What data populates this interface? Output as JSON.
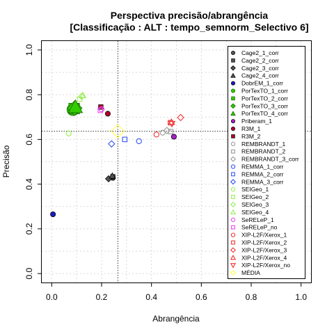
{
  "chart_data": {
    "type": "scatter",
    "title": "Perspectiva precisão/abrangência",
    "subtitle": "[Classificação : ALT : tempo_semnorm_Selectivo 6]",
    "xlabel": "Abrangência",
    "ylabel": "Precisão",
    "xlim": [
      -0.04,
      1.04
    ],
    "ylim": [
      -0.04,
      1.04
    ],
    "xticks": [
      "0.0",
      "0.2",
      "0.4",
      "0.6",
      "0.8",
      "1.0"
    ],
    "yticks": [
      "0.0",
      "0.2",
      "0.4",
      "0.6",
      "0.8",
      "1.0"
    ],
    "grid": true,
    "legend_position": "right",
    "reference_lines": {
      "x": 0.265,
      "y": 0.637
    },
    "series": [
      {
        "name": "Cage2_1_corr",
        "color": "#555555",
        "shape": "circle",
        "filled": true,
        "points": [
          [
            0.245,
            0.428
          ]
        ]
      },
      {
        "name": "Cage2_2_corr",
        "color": "#555555",
        "shape": "square",
        "filled": true,
        "points": [
          [
            0.245,
            0.433
          ]
        ]
      },
      {
        "name": "Cage2_3_corr",
        "color": "#555555",
        "shape": "diamond",
        "filled": true,
        "points": [
          [
            0.228,
            0.424
          ]
        ]
      },
      {
        "name": "Cage2_4_corr",
        "color": "#555555",
        "shape": "triangle",
        "filled": true,
        "points": [
          [
            0.243,
            0.437
          ]
        ]
      },
      {
        "name": "DobrEM_1_corr",
        "color": "#1a1acc",
        "shape": "circle",
        "filled": true,
        "points": [
          [
            0.005,
            0.265
          ]
        ]
      },
      {
        "name": "PorTexTO_1_corr",
        "color": "#33cc00",
        "shape": "circle",
        "filled": true,
        "points": [
          [
            0.085,
            0.733
          ]
        ]
      },
      {
        "name": "PorTexTO_2_corr",
        "color": "#33cc00",
        "shape": "square",
        "filled": true,
        "points": [
          [
            0.09,
            0.738
          ]
        ]
      },
      {
        "name": "PorTexTO_3_corr",
        "color": "#33cc00",
        "shape": "diamond",
        "filled": true,
        "points": [
          [
            0.092,
            0.74
          ]
        ]
      },
      {
        "name": "PorTexTO_4_corr",
        "color": "#33cc00",
        "shape": "triangle",
        "filled": true,
        "points": [
          [
            0.095,
            0.745
          ]
        ]
      },
      {
        "name": "Priberam_1",
        "color": "#aa22cc",
        "shape": "circle",
        "filled": true,
        "points": [
          [
            0.49,
            0.612
          ]
        ]
      },
      {
        "name": "R3M_1",
        "color": "#b8002a",
        "shape": "circle",
        "filled": true,
        "points": [
          [
            0.225,
            0.715
          ]
        ]
      },
      {
        "name": "R3M_2",
        "color": "#b8002a",
        "shape": "square",
        "filled": true,
        "points": [
          [
            0.197,
            0.745
          ]
        ]
      },
      {
        "name": "REMBRANDT_1",
        "color": "#999999",
        "shape": "circle",
        "filled": false,
        "points": [
          [
            0.445,
            0.63
          ]
        ]
      },
      {
        "name": "REMBRANDT_2",
        "color": "#999999",
        "shape": "square",
        "filled": false,
        "points": [
          [
            0.477,
            0.635
          ]
        ]
      },
      {
        "name": "REMBRANDT_3_corr",
        "color": "#999999",
        "shape": "diamond",
        "filled": false,
        "points": [
          [
            0.462,
            0.64
          ]
        ]
      },
      {
        "name": "REMMA_1_corr",
        "color": "#3355ee",
        "shape": "circle",
        "filled": false,
        "points": [
          [
            0.35,
            0.592
          ]
        ]
      },
      {
        "name": "REMMA_2_corr",
        "color": "#3355ee",
        "shape": "square",
        "filled": false,
        "points": [
          [
            0.293,
            0.6
          ]
        ]
      },
      {
        "name": "REMMA_3_corr",
        "color": "#3355ee",
        "shape": "diamond",
        "filled": false,
        "points": [
          [
            0.24,
            0.58
          ]
        ]
      },
      {
        "name": "SEIGeo_1",
        "color": "#99ee55",
        "shape": "circle",
        "filled": false,
        "points": [
          [
            0.068,
            0.627
          ]
        ]
      },
      {
        "name": "SEIGeo_2",
        "color": "#99ee55",
        "shape": "square",
        "filled": false,
        "points": [
          [
            0.112,
            0.78
          ]
        ]
      },
      {
        "name": "SEIGeo_3",
        "color": "#99ee55",
        "shape": "diamond",
        "filled": false,
        "points": [
          [
            0.12,
            0.792
          ]
        ]
      },
      {
        "name": "SEIGeo_4",
        "color": "#99ee55",
        "shape": "triangle",
        "filled": false,
        "points": [
          [
            0.125,
            0.797
          ]
        ]
      },
      {
        "name": "SeRELeP_1",
        "color": "#ee44ee",
        "shape": "circle",
        "filled": false,
        "points": [
          [
            0.2,
            0.735
          ]
        ]
      },
      {
        "name": "SeRELeP_no",
        "color": "#ee44ee",
        "shape": "square",
        "filled": false,
        "points": [
          [
            0.195,
            0.73
          ]
        ]
      },
      {
        "name": "XIP-L2F/Xerox_1",
        "color": "#ee3333",
        "shape": "circle",
        "filled": false,
        "points": [
          [
            0.42,
            0.622
          ]
        ]
      },
      {
        "name": "XIP-L2F/Xerox_2",
        "color": "#ee3333",
        "shape": "square",
        "filled": false,
        "points": [
          [
            0.476,
            0.675
          ]
        ]
      },
      {
        "name": "XIP-L2F/Xerox_3",
        "color": "#ee3333",
        "shape": "diamond",
        "filled": false,
        "points": [
          [
            0.517,
            0.698
          ]
        ]
      },
      {
        "name": "XIP-L2F/Xerox_4",
        "color": "#ee3333",
        "shape": "triangle",
        "filled": false,
        "points": [
          [
            0.48,
            0.677
          ]
        ]
      },
      {
        "name": "XIP-L2F/Xerox_no",
        "color": "#ee3333",
        "shape": "triangle-down",
        "filled": false,
        "points": [
          [
            0.482,
            0.67
          ]
        ]
      },
      {
        "name": "MÉDIA",
        "color": "#ffff44",
        "shape": "diamond",
        "filled": false,
        "points": [
          [
            0.265,
            0.637
          ]
        ]
      }
    ]
  }
}
